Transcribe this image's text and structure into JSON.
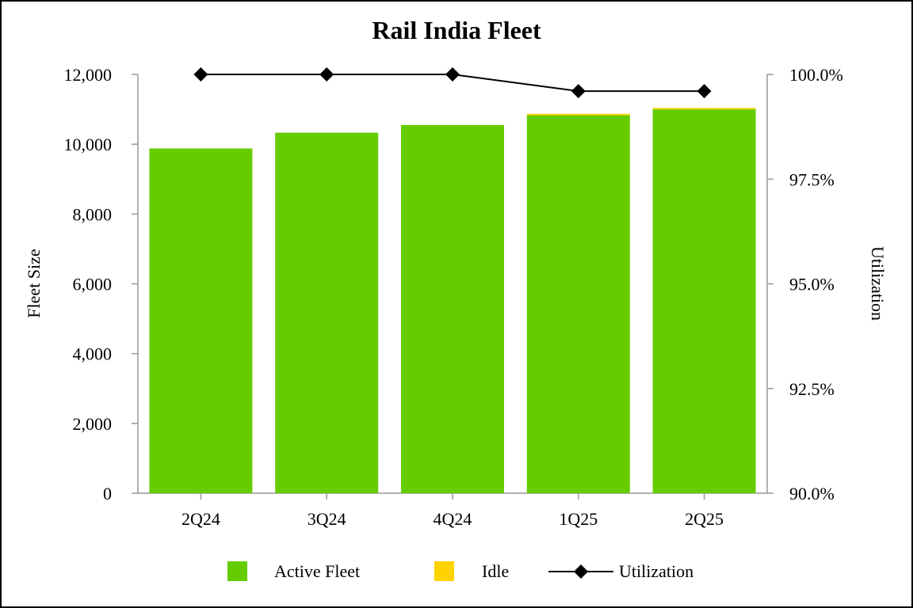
{
  "chart_data": {
    "type": "bar",
    "stacked": true,
    "title": "Rail India Fleet",
    "categories": [
      "2Q24",
      "3Q24",
      "4Q24",
      "1Q25",
      "2Q25"
    ],
    "series": [
      {
        "name": "Active Fleet",
        "axis": "left",
        "color": "#66cc00",
        "values": [
          9880,
          10330,
          10550,
          10830,
          11000
        ]
      },
      {
        "name": "Idle",
        "axis": "left",
        "color": "#ffd200",
        "values": [
          0,
          0,
          0,
          40,
          40
        ]
      },
      {
        "name": "Utilization",
        "axis": "right",
        "kind": "line",
        "marker": "diamond",
        "color": "#000000",
        "values": [
          100.0,
          100.0,
          100.0,
          99.6,
          99.6
        ]
      }
    ],
    "ylabel": "Fleet Size",
    "y2label": "Utilization",
    "ylim": [
      0,
      12000
    ],
    "y2lim": [
      90.0,
      100.0
    ],
    "yticks": [
      "0",
      "2,000",
      "4,000",
      "6,000",
      "8,000",
      "10,000",
      "12,000"
    ],
    "y2ticks": [
      "90.0%",
      "92.5%",
      "95.0%",
      "97.5%",
      "100.0%"
    ],
    "legend": {
      "position": "bottom",
      "entries": [
        "Active Fleet",
        "Idle",
        "Utilization"
      ]
    }
  }
}
